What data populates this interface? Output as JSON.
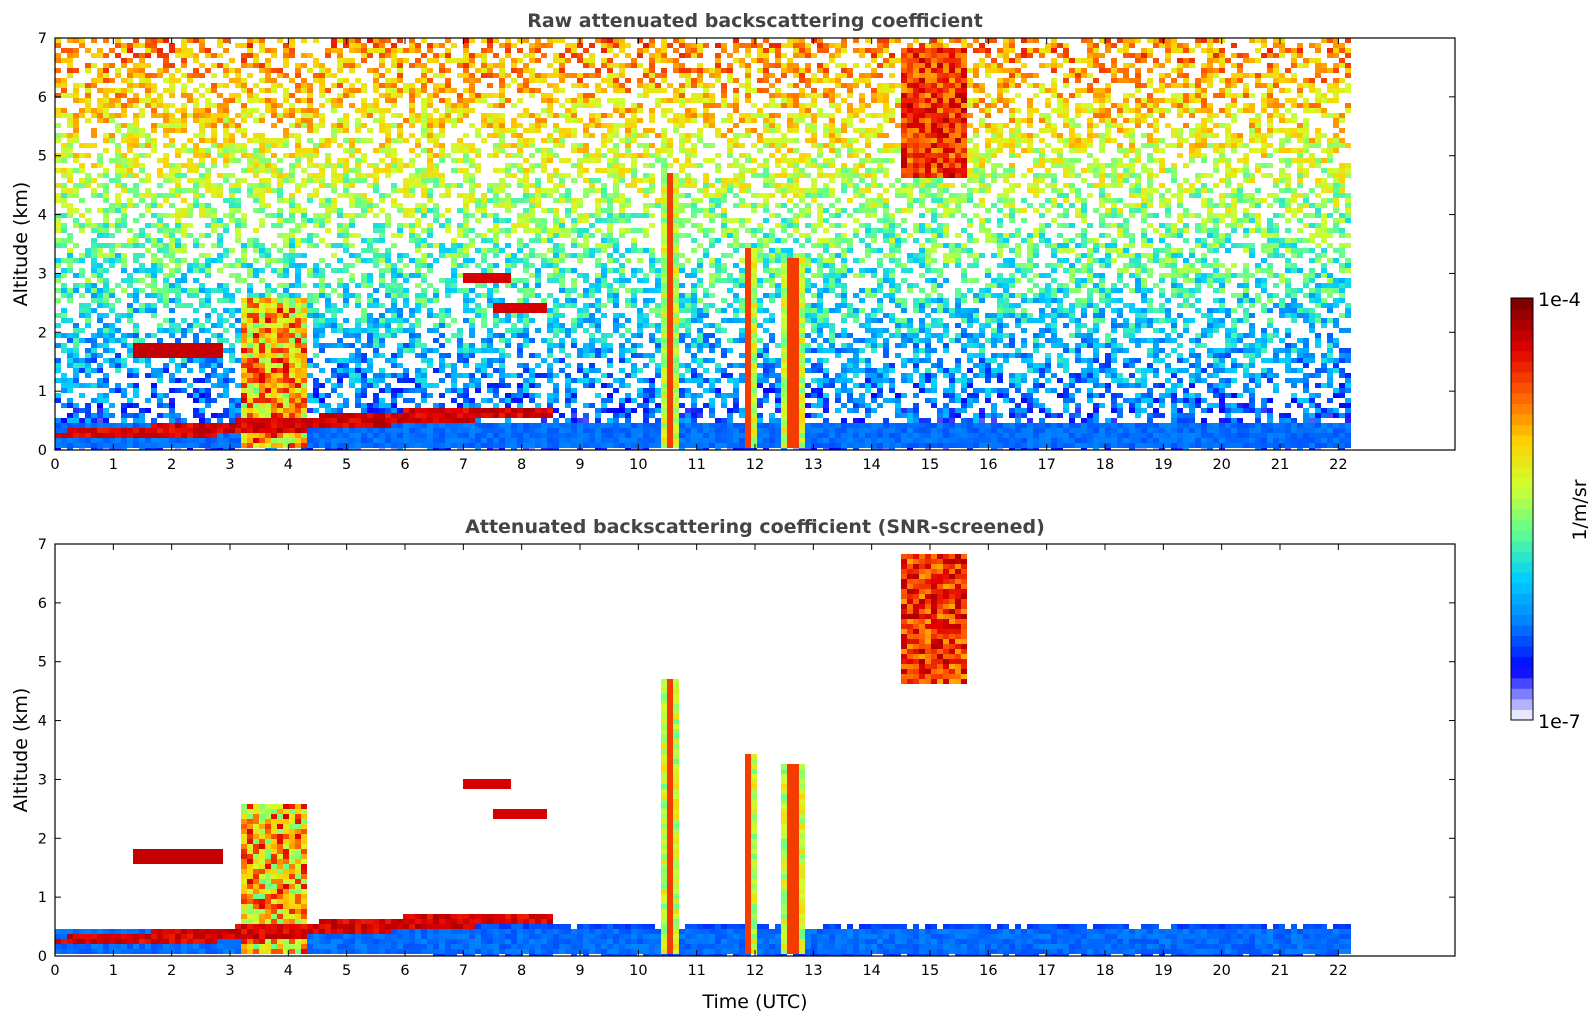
{
  "chart_data": [
    {
      "type": "heatmap",
      "title": "Raw attenuated backscattering coefficient",
      "xlabel": "",
      "ylabel": "Altitude (km)",
      "xlim": [
        0,
        24
      ],
      "ylim": [
        0,
        7
      ],
      "xticks": [
        0,
        1,
        2,
        3,
        4,
        5,
        6,
        7,
        8,
        9,
        10,
        11,
        12,
        13,
        14,
        15,
        16,
        17,
        18,
        19,
        20,
        21,
        22
      ],
      "yticks": [
        0,
        1,
        2,
        3,
        4,
        5,
        6,
        7
      ],
      "data_extent_x": [
        0,
        22.2
      ],
      "screened": false,
      "features": [
        {
          "kind": "boundary_layer_aerosol",
          "x": [
            0,
            22.2
          ],
          "alt_km": [
            0,
            0.5
          ]
        },
        {
          "kind": "rising_aerosol_top",
          "x": [
            0,
            8.5
          ],
          "alt_km": [
            0.2,
            0.7
          ]
        },
        {
          "kind": "low_cloud",
          "x": [
            1.3,
            2.9
          ],
          "alt_km": [
            1.6,
            1.8
          ]
        },
        {
          "kind": "convective_plume",
          "x": [
            3.2,
            4.3
          ],
          "alt_km": [
            0,
            2.6
          ]
        },
        {
          "kind": "elevated_cloud",
          "x": [
            7.0,
            7.8
          ],
          "alt_km": [
            2.8,
            3.0
          ]
        },
        {
          "kind": "elevated_cloud",
          "x": [
            7.5,
            8.4
          ],
          "alt_km": [
            2.3,
            2.5
          ]
        },
        {
          "kind": "rain_shaft",
          "x": [
            10.35,
            10.7
          ],
          "alt_km": [
            0,
            4.7
          ]
        },
        {
          "kind": "rain_shaft",
          "x": [
            11.8,
            12.0
          ],
          "alt_km": [
            0,
            3.4
          ]
        },
        {
          "kind": "rain_shaft",
          "x": [
            12.45,
            12.85
          ],
          "alt_km": [
            0,
            3.3
          ]
        },
        {
          "kind": "upper_aerosol_patch",
          "x": [
            14.5,
            15.6
          ],
          "alt_km": [
            4.6,
            6.8
          ]
        }
      ]
    },
    {
      "type": "heatmap",
      "title": "Attenuated backscattering coefficient (SNR-screened)",
      "xlabel": "Time (UTC)",
      "ylabel": "Altitude (km)",
      "xlim": [
        0,
        24
      ],
      "ylim": [
        0,
        7
      ],
      "xticks": [
        0,
        1,
        2,
        3,
        4,
        5,
        6,
        7,
        8,
        9,
        10,
        11,
        12,
        13,
        14,
        15,
        16,
        17,
        18,
        19,
        20,
        21,
        22
      ],
      "yticks": [
        0,
        1,
        2,
        3,
        4,
        5,
        6,
        7
      ],
      "data_extent_x": [
        0,
        22.2
      ],
      "screened": true
    }
  ],
  "colorbar": {
    "label": "1/m/sr",
    "min_label": "1e-7",
    "max_label": "1e-4",
    "scale": "log",
    "colormap": [
      "#e8e8ff",
      "#0000ff",
      "#0080ff",
      "#00d0ff",
      "#60ff90",
      "#d0ff30",
      "#ffd000",
      "#ff6000",
      "#e00000",
      "#800000"
    ]
  }
}
